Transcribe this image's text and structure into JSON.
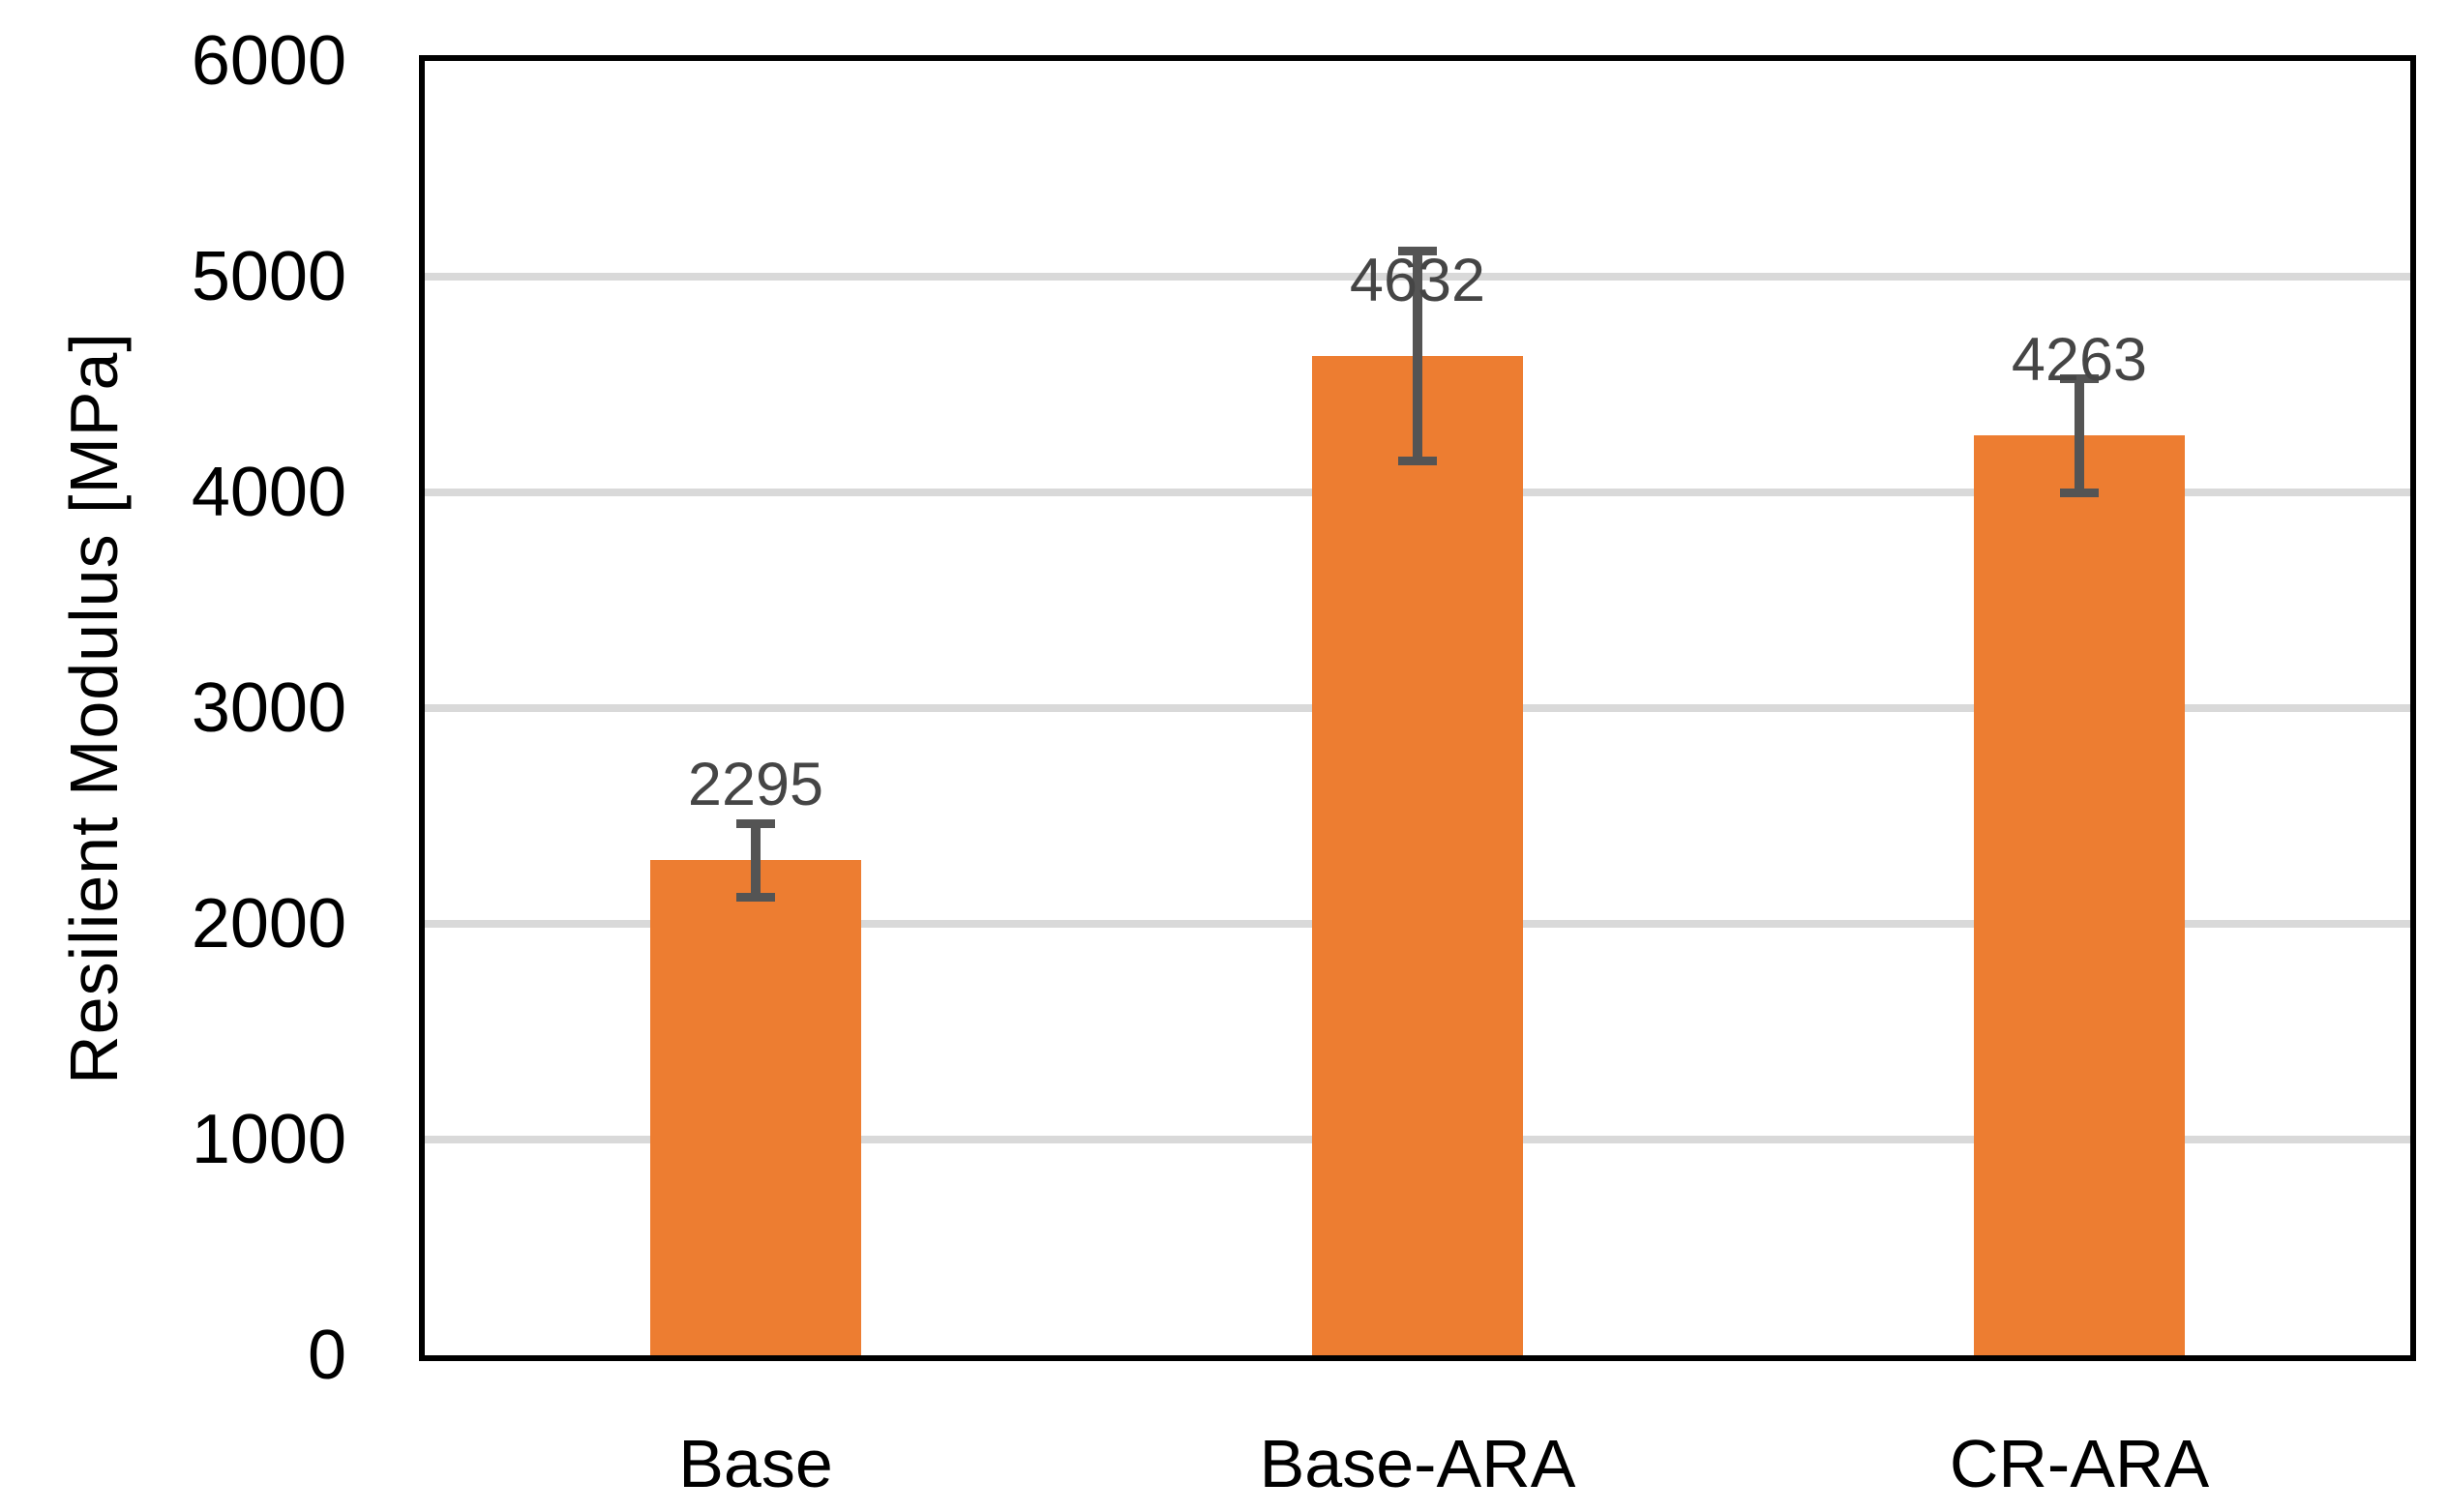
{
  "chart_data": {
    "type": "bar",
    "title": "",
    "xlabel": "",
    "ylabel": "Resilient Modulus [MPa]",
    "categories": [
      "Base",
      "Base-ARA",
      "CR-ARA"
    ],
    "values": [
      2295,
      4632,
      4263
    ],
    "data_labels": [
      "2295",
      "4632",
      "4263"
    ],
    "error_bars_plus_minus": [
      190,
      505,
      285
    ],
    "ylim": [
      0,
      6000
    ],
    "ytick_step": 1000,
    "ytick_labels": [
      "0",
      "1000",
      "2000",
      "3000",
      "4000",
      "5000",
      "6000"
    ],
    "legend": "none",
    "grid": "horizontal",
    "colors": {
      "bar": "#ED7D31",
      "error_bar": "#545454",
      "data_label": "#454545",
      "gridline": "#D9D9D9",
      "axis_border": "#000000",
      "tick_text": "#000000",
      "background": "#FFFFFF"
    }
  }
}
